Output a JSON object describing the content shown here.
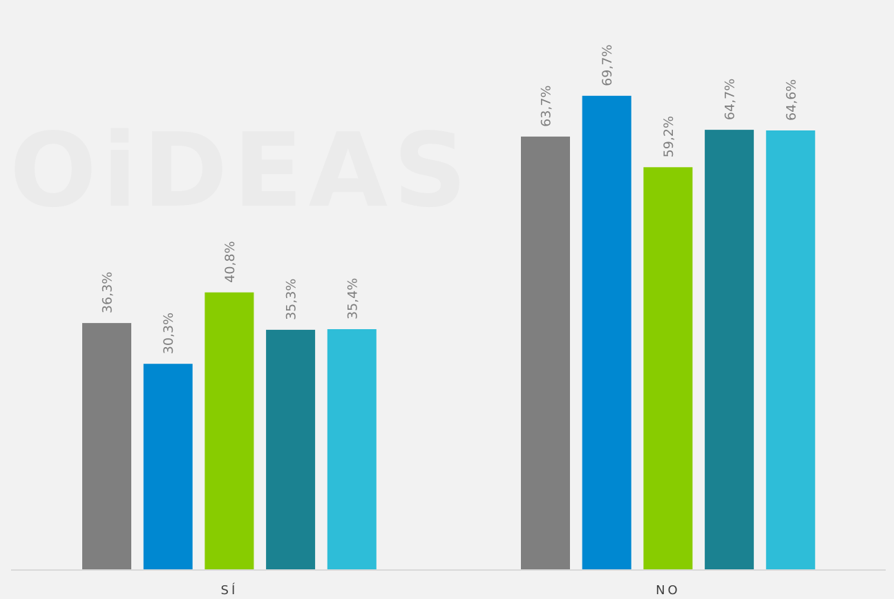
{
  "watermark": "OiDEAS",
  "chart_data": {
    "type": "bar",
    "title": "",
    "xlabel": "",
    "ylabel": "",
    "categories": [
      "SÍ",
      "NO"
    ],
    "ylim": [
      0,
      72
    ],
    "grid": false,
    "legend": "none",
    "series": [
      {
        "color": "#7f7f7f",
        "values": [
          36.3,
          63.7
        ],
        "labels": [
          "36,3%",
          "63,7%"
        ]
      },
      {
        "color": "#0088d1",
        "values": [
          30.3,
          69.7
        ],
        "labels": [
          "30,3%",
          "69,7%"
        ]
      },
      {
        "color": "#88cc00",
        "values": [
          40.8,
          59.2
        ],
        "labels": [
          "40,8%",
          "59,2%"
        ]
      },
      {
        "color": "#1b8291",
        "values": [
          35.3,
          64.7
        ],
        "labels": [
          "35,3%",
          "64,7%"
        ]
      },
      {
        "color": "#2ebdd8",
        "values": [
          35.4,
          64.6
        ],
        "labels": [
          "35,4%",
          "64,6%"
        ]
      }
    ]
  }
}
